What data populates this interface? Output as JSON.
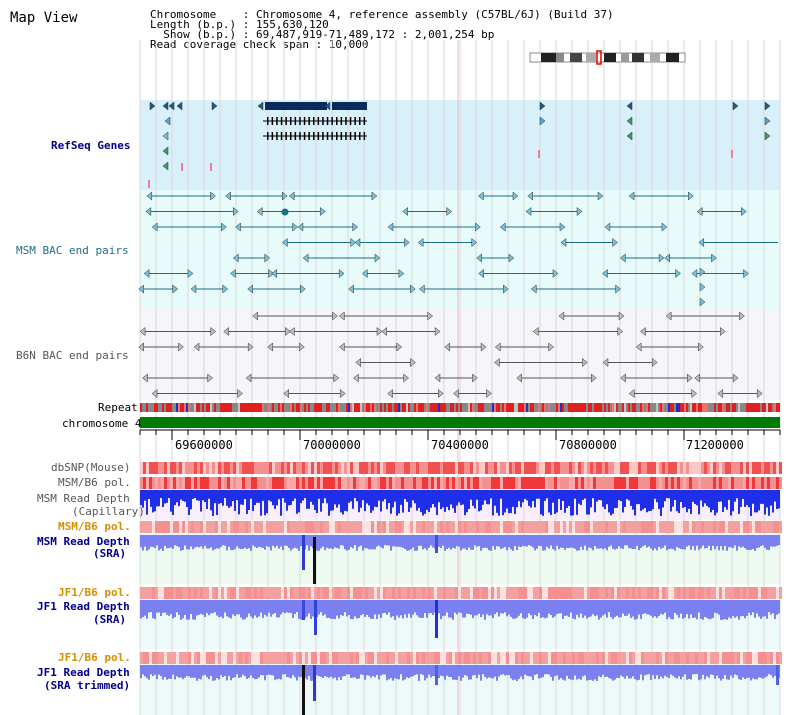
{
  "title": "Map View",
  "header": {
    "line1": "Chromosome    : Chromosome 4, reference assembly (C57BL/6J) (Build 37)",
    "line2": "Length (b.p.) : 155,630,120",
    "line3": "  Show (b.p.) : 69,487,919-71,489,172 : 2,001,254 bp",
    "line4": "Read coverage check span : 10,000"
  },
  "tracks": {
    "refseq": "RefSeq Genes",
    "msm_bac": "MSM BAC end pairs",
    "b6n_bac": "B6N BAC end pairs",
    "repeat": "Repeat",
    "chromosome": "chromosome 4",
    "dbsnp": "dbSNP(Mouse)",
    "msm_b6_pol": "MSM/B6 pol.",
    "msm_depth_cap_1": "MSM Read Depth",
    "msm_depth_cap_2": "(Capillary)",
    "msm_b6_pol_2": "MSM/B6 pol.",
    "msm_depth_sra_1": "MSM Read Depth",
    "msm_depth_sra_2": "(SRA)",
    "jf1_b6_pol": "JF1/B6 pol.",
    "jf1_depth_sra_1": "JF1 Read Depth",
    "jf1_depth_sra_2": "(SRA)",
    "jf1_b6_pol_2": "JF1/B6 pol.",
    "jf1_trim_1": "JF1 Read Depth",
    "jf1_trim_2": "(SRA trimmed)"
  },
  "axis": {
    "ticks": [
      "69600000",
      "70000000",
      "70400000",
      "70800000",
      "71200000"
    ]
  },
  "colors": {
    "refseq_bg": "#d8f0fa",
    "bac_bg": "#e8fbfb",
    "b6n_bg": "#f4f4f8",
    "chromosome": "#007a00",
    "depth_cap": "#1f2fe8",
    "depth_sra": "#7b80f0",
    "pol_red": "#f05050"
  }
}
